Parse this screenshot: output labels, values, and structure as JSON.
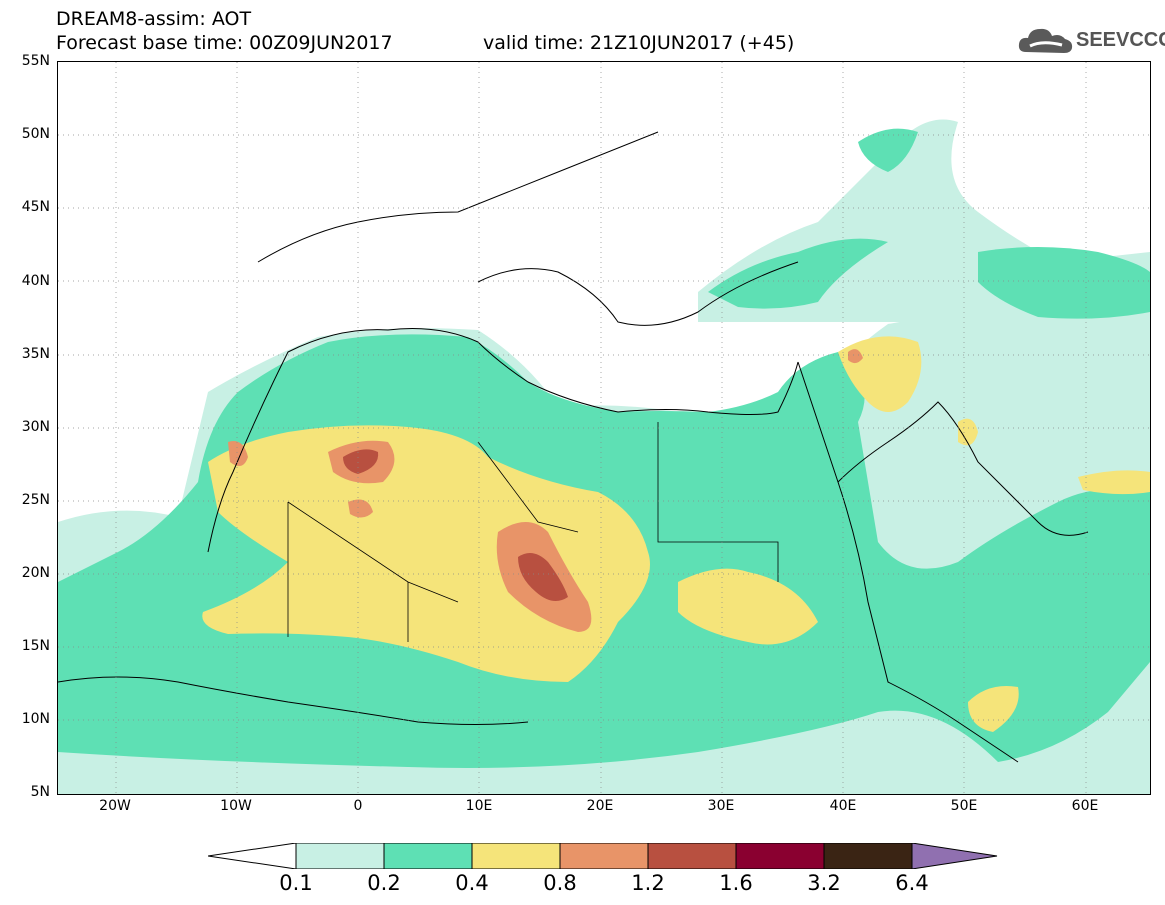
{
  "header": {
    "title_line1": "DREAM8-assim: AOT",
    "title_line2": "Forecast base time: 00Z09JUN2017",
    "valid_time": "valid time: 21Z10JUN2017 (+45)"
  },
  "logo": {
    "text": "SEEVCCC",
    "icon": "cloud-logo-icon",
    "color": "#555555"
  },
  "map": {
    "lat_labels": [
      "55N",
      "50N",
      "45N",
      "40N",
      "35N",
      "30N",
      "25N",
      "20N",
      "15N",
      "10N",
      "5N"
    ],
    "lon_labels": [
      "20W",
      "10W",
      "0",
      "10E",
      "20E",
      "30E",
      "40E",
      "50E",
      "60E"
    ],
    "lat_range": [
      5,
      55
    ],
    "lon_range": [
      -25,
      65
    ],
    "gridlines": "dotted"
  },
  "colorbar": {
    "labels": [
      "0.1",
      "0.2",
      "0.4",
      "0.8",
      "1.2",
      "1.6",
      "3.2",
      "6.4"
    ],
    "colors": [
      "#ffffff",
      "#c8f0e4",
      "#5ee0b4",
      "#f5e47a",
      "#e89468",
      "#b85040",
      "#8a0030",
      "#3a2414",
      "#9070b0"
    ]
  }
}
